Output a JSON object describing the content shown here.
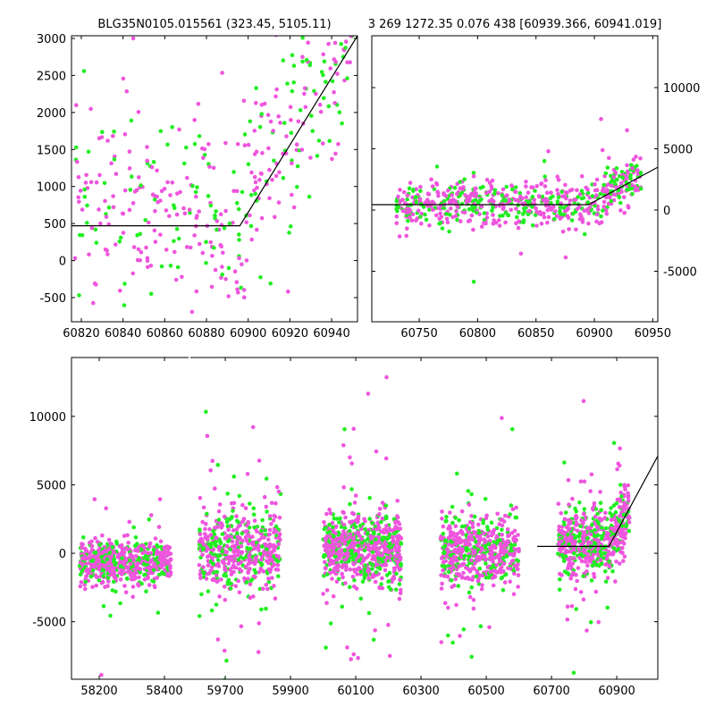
{
  "colors": {
    "green": "#22ee22",
    "magenta": "#ee55dd",
    "line": "#000000"
  },
  "chart_data": [
    {
      "type": "scatter",
      "title": "BLG35N0105.015561 (323.45, 5105.11)",
      "xlim": [
        60815.3,
        60952.4
      ],
      "ylim": [
        -826,
        3036
      ],
      "xticks": [
        60820,
        60840,
        60860,
        60880,
        60900,
        60920,
        60940
      ],
      "yticks": [
        -500,
        0,
        500,
        1000,
        1500,
        2000,
        2500,
        3000
      ],
      "ytick_side": "left",
      "model_line": {
        "x": [
          60815.3,
          60896,
          60952.4
        ],
        "y": [
          470,
          470,
          3036
        ]
      },
      "point_groups": [
        {
          "x_range": [
            60817,
            60950
          ],
          "noise": 650,
          "count": 420,
          "green_fraction": 0.35,
          "follow_model": true,
          "offset": 250
        }
      ]
    },
    {
      "type": "scatter",
      "title": "3 269 1272.35 0.076 438 [60939.366, 60941.019]",
      "xlim": [
        60709.4,
        60954.3
      ],
      "ylim": [
        -9124,
        14234
      ],
      "xticks": [
        60750,
        60800,
        60850,
        60900,
        60950
      ],
      "yticks": [
        -5000,
        0,
        5000,
        10000
      ],
      "ytick_side": "right",
      "model_line": {
        "x": [
          60709.4,
          60895,
          60954.3
        ],
        "y": [
          440,
          440,
          3500
        ]
      },
      "point_groups": [
        {
          "x_range": [
            60730,
            60940
          ],
          "noise": 900,
          "count": 650,
          "green_fraction": 0.35,
          "follow_model": true,
          "offset": 0
        }
      ]
    },
    {
      "type": "scatter",
      "title": "",
      "broken_x": [
        [
          58115,
          58474
        ],
        [
          59593,
          61026
        ]
      ],
      "ylim": [
        -9200,
        14300
      ],
      "xticks": [
        58200,
        58400,
        59700,
        59900,
        60100,
        60300,
        60500,
        60700,
        60900
      ],
      "yticks": [
        -5000,
        0,
        5000,
        10000
      ],
      "ytick_side": "left",
      "model_line": {
        "x": [
          60656,
          60876,
          61026
        ],
        "y": [
          500,
          500,
          7100
        ]
      },
      "point_groups": [
        {
          "x_range": [
            58140,
            58420
          ],
          "center": -600,
          "noise": 700,
          "count": 650,
          "green_fraction": 0.3,
          "follow_model": false
        },
        {
          "x_range": [
            59620,
            59870
          ],
          "center": 200,
          "noise": 1400,
          "count": 550,
          "green_fraction": 0.35,
          "follow_model": false
        },
        {
          "x_range": [
            60000,
            60240
          ],
          "center": 300,
          "noise": 1300,
          "count": 700,
          "green_fraction": 0.35,
          "follow_model": false
        },
        {
          "x_range": [
            60360,
            60600
          ],
          "center": 200,
          "noise": 1200,
          "count": 600,
          "green_fraction": 0.3,
          "follow_model": false
        },
        {
          "x_range": [
            60720,
            60940
          ],
          "center": 700,
          "noise": 1200,
          "count": 600,
          "green_fraction": 0.35,
          "follow_model": true,
          "offset": 200
        }
      ]
    }
  ]
}
